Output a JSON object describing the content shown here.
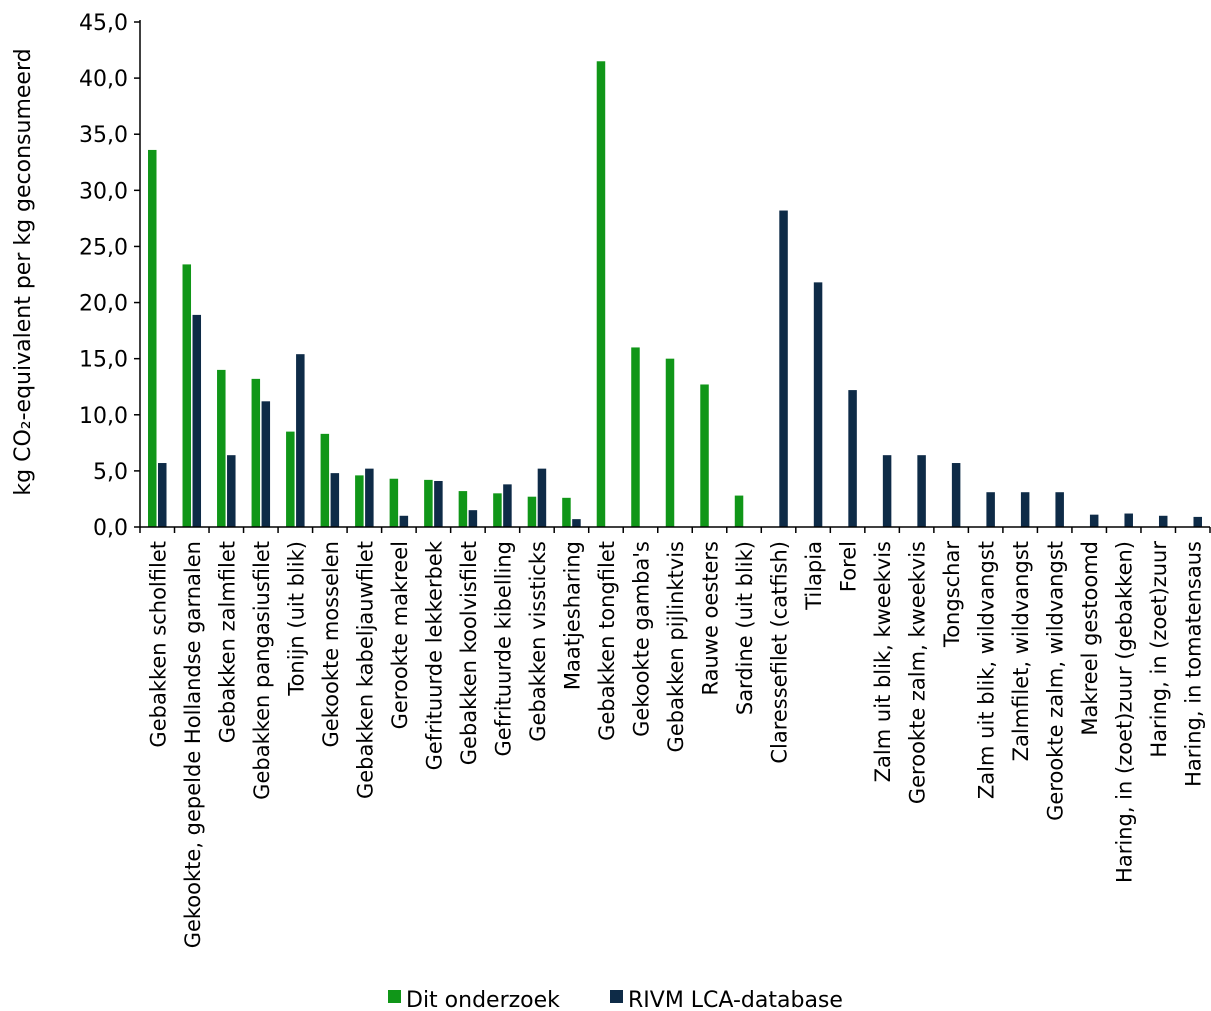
{
  "chart_data": {
    "type": "bar",
    "ylabel": "kg CO₂-equivalent per kg geconsumeerd",
    "ylim": [
      0,
      45
    ],
    "yticks": [
      "0,0",
      "5,0",
      "10,0",
      "15,0",
      "20,0",
      "25,0",
      "30,0",
      "35,0",
      "40,0",
      "45,0"
    ],
    "grid": false,
    "legend_position": "bottom",
    "colors": {
      "Dit onderzoek": "#109618",
      "RIVM LCA-database": "#0e2b47"
    },
    "categories": [
      "Gebakken scholfilet",
      "Gekookte, gepelde Hollandse garnalen",
      "Gebakken zalmfilet",
      "Gebakken pangasiusfilet",
      "Tonijn (uit blik)",
      "Gekookte mosselen",
      "Gebakken kabeljauwfilet",
      "Gerookte makreel",
      "Gefrituurde lekkerbek",
      "Gebakken koolvisfilet",
      "Gefrituurde kibelling",
      "Gebakken vissticks",
      "Maatjesharing",
      "Gebakken tongfilet",
      "Gekookte gamba's",
      "Gebakken pijlinktvis",
      "Rauwe oesters",
      "Sardine (uit blik)",
      "Claressefilet (catfish)",
      "Tilapia",
      "Forel",
      "Zalm uit blik, kweekvis",
      "Gerookte zalm, kweekvis",
      "Tongschar",
      "Zalm uit blik, wildvangst",
      "Zalmfilet, wildvangst",
      "Gerookte zalm, wildvangst",
      "Makreel gestoomd",
      "Haring, in (zoet)zuur (gebakken)",
      "Haring, in (zoet)zuur",
      "Haring, in tomatensaus"
    ],
    "series": [
      {
        "name": "Dit onderzoek",
        "values": [
          33.6,
          23.4,
          14.0,
          13.2,
          8.5,
          8.3,
          4.6,
          4.3,
          4.2,
          3.2,
          3.0,
          2.7,
          2.6,
          41.5,
          16.0,
          15.0,
          12.7,
          2.8,
          null,
          null,
          null,
          null,
          null,
          null,
          null,
          null,
          null,
          null,
          null,
          null,
          null
        ]
      },
      {
        "name": "RIVM LCA-database",
        "values": [
          5.7,
          18.9,
          6.4,
          11.2,
          15.4,
          4.8,
          5.2,
          1.0,
          4.1,
          1.5,
          3.8,
          5.2,
          0.7,
          null,
          null,
          null,
          null,
          null,
          28.2,
          21.8,
          12.2,
          6.4,
          6.4,
          5.7,
          3.1,
          3.1,
          3.1,
          1.1,
          1.2,
          1.0,
          0.9
        ]
      }
    ]
  }
}
